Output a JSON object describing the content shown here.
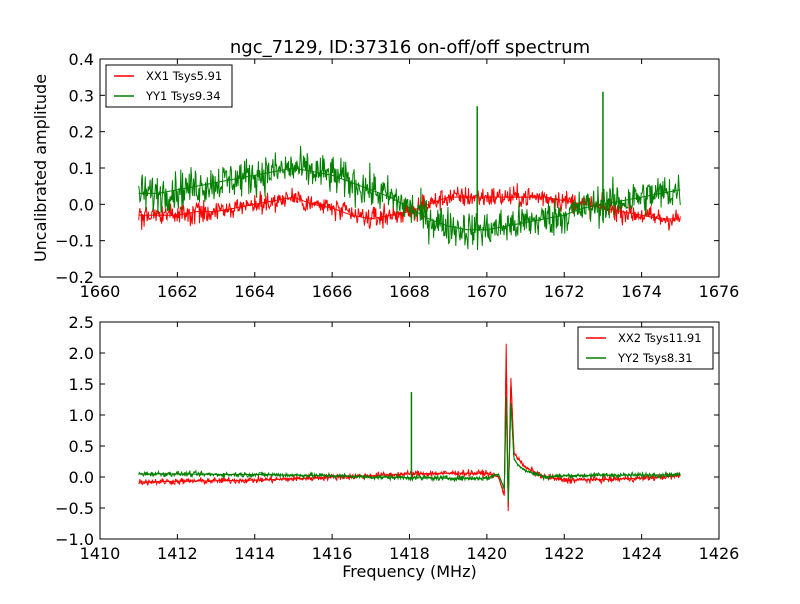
{
  "figure": {
    "title": "ngc_7129, ID:37316 on-off/off spectrum"
  },
  "chart_data": [
    {
      "type": "line",
      "title": "ngc_7129, ID:37316 on-off/off spectrum",
      "xlabel": "",
      "ylabel": "Uncalibrated amplitude",
      "xlim": [
        1660,
        1676
      ],
      "ylim": [
        -0.2,
        0.4
      ],
      "xticks": [
        "1660",
        "1662",
        "1664",
        "1666",
        "1668",
        "1670",
        "1672",
        "1674",
        "1676"
      ],
      "yticks": [
        "0.4",
        "0.3",
        "0.2",
        "0.1",
        "0.0",
        "−0.1",
        "−0.2"
      ],
      "grid": false,
      "legend_position": "top-left",
      "series": [
        {
          "name": "XX1 Tsys5.91",
          "color": "#ff0000",
          "x": [
            1661,
            1661.5,
            1662,
            1662.5,
            1663,
            1663.5,
            1664,
            1664.5,
            1665,
            1665.5,
            1666,
            1666.5,
            1667,
            1667.5,
            1668,
            1668.5,
            1669,
            1669.5,
            1670,
            1670.5,
            1671,
            1671.5,
            1672,
            1672.5,
            1673,
            1673.5,
            1674,
            1674.5,
            1675
          ],
          "values": [
            -0.03,
            -0.03,
            -0.03,
            -0.02,
            -0.02,
            -0.01,
            0.0,
            0.01,
            0.02,
            0.0,
            -0.01,
            -0.03,
            -0.04,
            -0.03,
            -0.02,
            0.0,
            0.02,
            0.02,
            0.02,
            0.02,
            0.02,
            0.02,
            0.01,
            0.0,
            -0.01,
            -0.02,
            -0.03,
            -0.04,
            -0.04
          ]
        },
        {
          "name": "YY1 Tsys9.34",
          "color": "#008000",
          "x": [
            1661,
            1661.5,
            1662,
            1662.5,
            1663,
            1663.5,
            1664,
            1664.5,
            1665,
            1665.5,
            1666,
            1666.5,
            1667,
            1667.5,
            1668,
            1668.5,
            1669,
            1669.5,
            1670,
            1670.5,
            1671,
            1671.5,
            1672,
            1672.5,
            1673,
            1673.5,
            1674,
            1674.5,
            1675
          ],
          "values": [
            0.03,
            0.03,
            0.04,
            0.05,
            0.06,
            0.07,
            0.08,
            0.09,
            0.1,
            0.09,
            0.08,
            0.06,
            0.04,
            0.02,
            -0.01,
            -0.04,
            -0.06,
            -0.07,
            -0.07,
            -0.06,
            -0.05,
            -0.04,
            -0.03,
            -0.01,
            0.0,
            0.01,
            0.02,
            0.03,
            0.04
          ],
          "spikes": [
            {
              "x": 1669.75,
              "y": 0.27
            },
            {
              "x": 1673.0,
              "y": 0.31
            }
          ]
        }
      ]
    },
    {
      "type": "line",
      "title": "",
      "xlabel": "Frequency (MHz)",
      "ylabel": "",
      "xlim": [
        1410,
        1426
      ],
      "ylim": [
        -1.0,
        2.5
      ],
      "xticks": [
        "1410",
        "1412",
        "1414",
        "1416",
        "1418",
        "1420",
        "1422",
        "1424",
        "1426"
      ],
      "yticks": [
        "2.5",
        "2.0",
        "1.5",
        "1.0",
        "0.5",
        "0.0",
        "−0.5",
        "−1.0"
      ],
      "grid": false,
      "legend_position": "top-right",
      "series": [
        {
          "name": "XX2 Tsys11.91",
          "color": "#ff0000",
          "x": [
            1411,
            1412,
            1413,
            1414,
            1415,
            1416,
            1417,
            1418,
            1419,
            1420,
            1420.3,
            1420.45,
            1420.5,
            1420.55,
            1420.62,
            1420.7,
            1420.8,
            1421.0,
            1421.5,
            1422,
            1423,
            1424,
            1425
          ],
          "values": [
            -0.08,
            -0.07,
            -0.06,
            -0.05,
            -0.03,
            0.0,
            0.02,
            0.05,
            0.06,
            0.06,
            0.0,
            -0.3,
            2.15,
            -0.55,
            1.6,
            0.4,
            0.3,
            0.15,
            0.0,
            -0.05,
            -0.04,
            -0.02,
            0.02
          ]
        },
        {
          "name": "YY2 Tsys8.31",
          "color": "#008000",
          "x": [
            1411,
            1412,
            1413,
            1414,
            1415,
            1416,
            1417,
            1418,
            1419,
            1420,
            1420.3,
            1420.45,
            1420.5,
            1420.55,
            1420.62,
            1420.7,
            1420.8,
            1421.0,
            1421.5,
            1422,
            1423,
            1424,
            1425
          ],
          "values": [
            0.05,
            0.05,
            0.04,
            0.04,
            0.03,
            0.02,
            0.0,
            -0.01,
            -0.02,
            -0.02,
            0.05,
            -0.2,
            1.3,
            -0.4,
            1.2,
            0.3,
            0.2,
            0.1,
            0.0,
            0.02,
            0.03,
            0.03,
            0.04
          ],
          "spikes": [
            {
              "x": 1418.05,
              "y": 1.37
            }
          ]
        }
      ]
    }
  ]
}
